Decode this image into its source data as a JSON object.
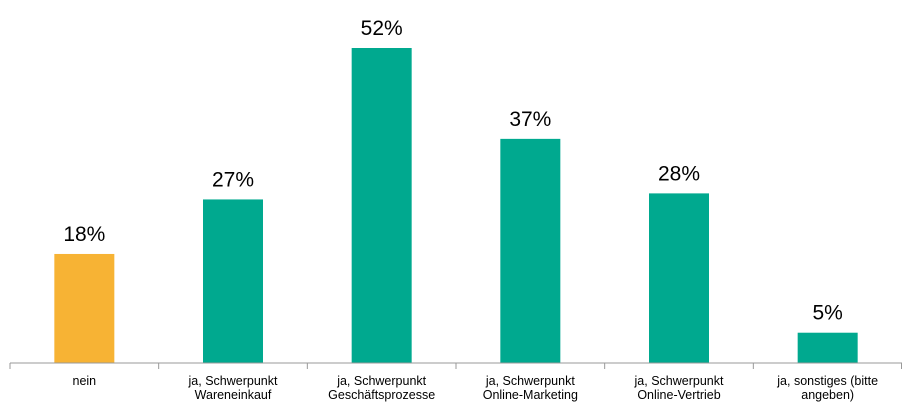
{
  "chart_data": {
    "type": "bar",
    "categories": [
      [
        "nein"
      ],
      [
        "ja, Schwerpunkt",
        "Wareneinkauf"
      ],
      [
        "ja, Schwerpunkt",
        "Geschäftsprozesse"
      ],
      [
        "ja, Schwerpunkt",
        "Online-Marketing"
      ],
      [
        "ja, Schwerpunkt",
        "Online-Vertrieb"
      ],
      [
        "ja, sonstiges (bitte",
        "angeben)"
      ]
    ],
    "values": [
      18,
      27,
      52,
      37,
      28,
      5
    ],
    "value_labels": [
      "18%",
      "27%",
      "52%",
      "37%",
      "28%",
      "5%"
    ],
    "colors": [
      "#f7b334",
      "#00a98f",
      "#00a98f",
      "#00a98f",
      "#00a98f",
      "#00a98f"
    ]
  }
}
